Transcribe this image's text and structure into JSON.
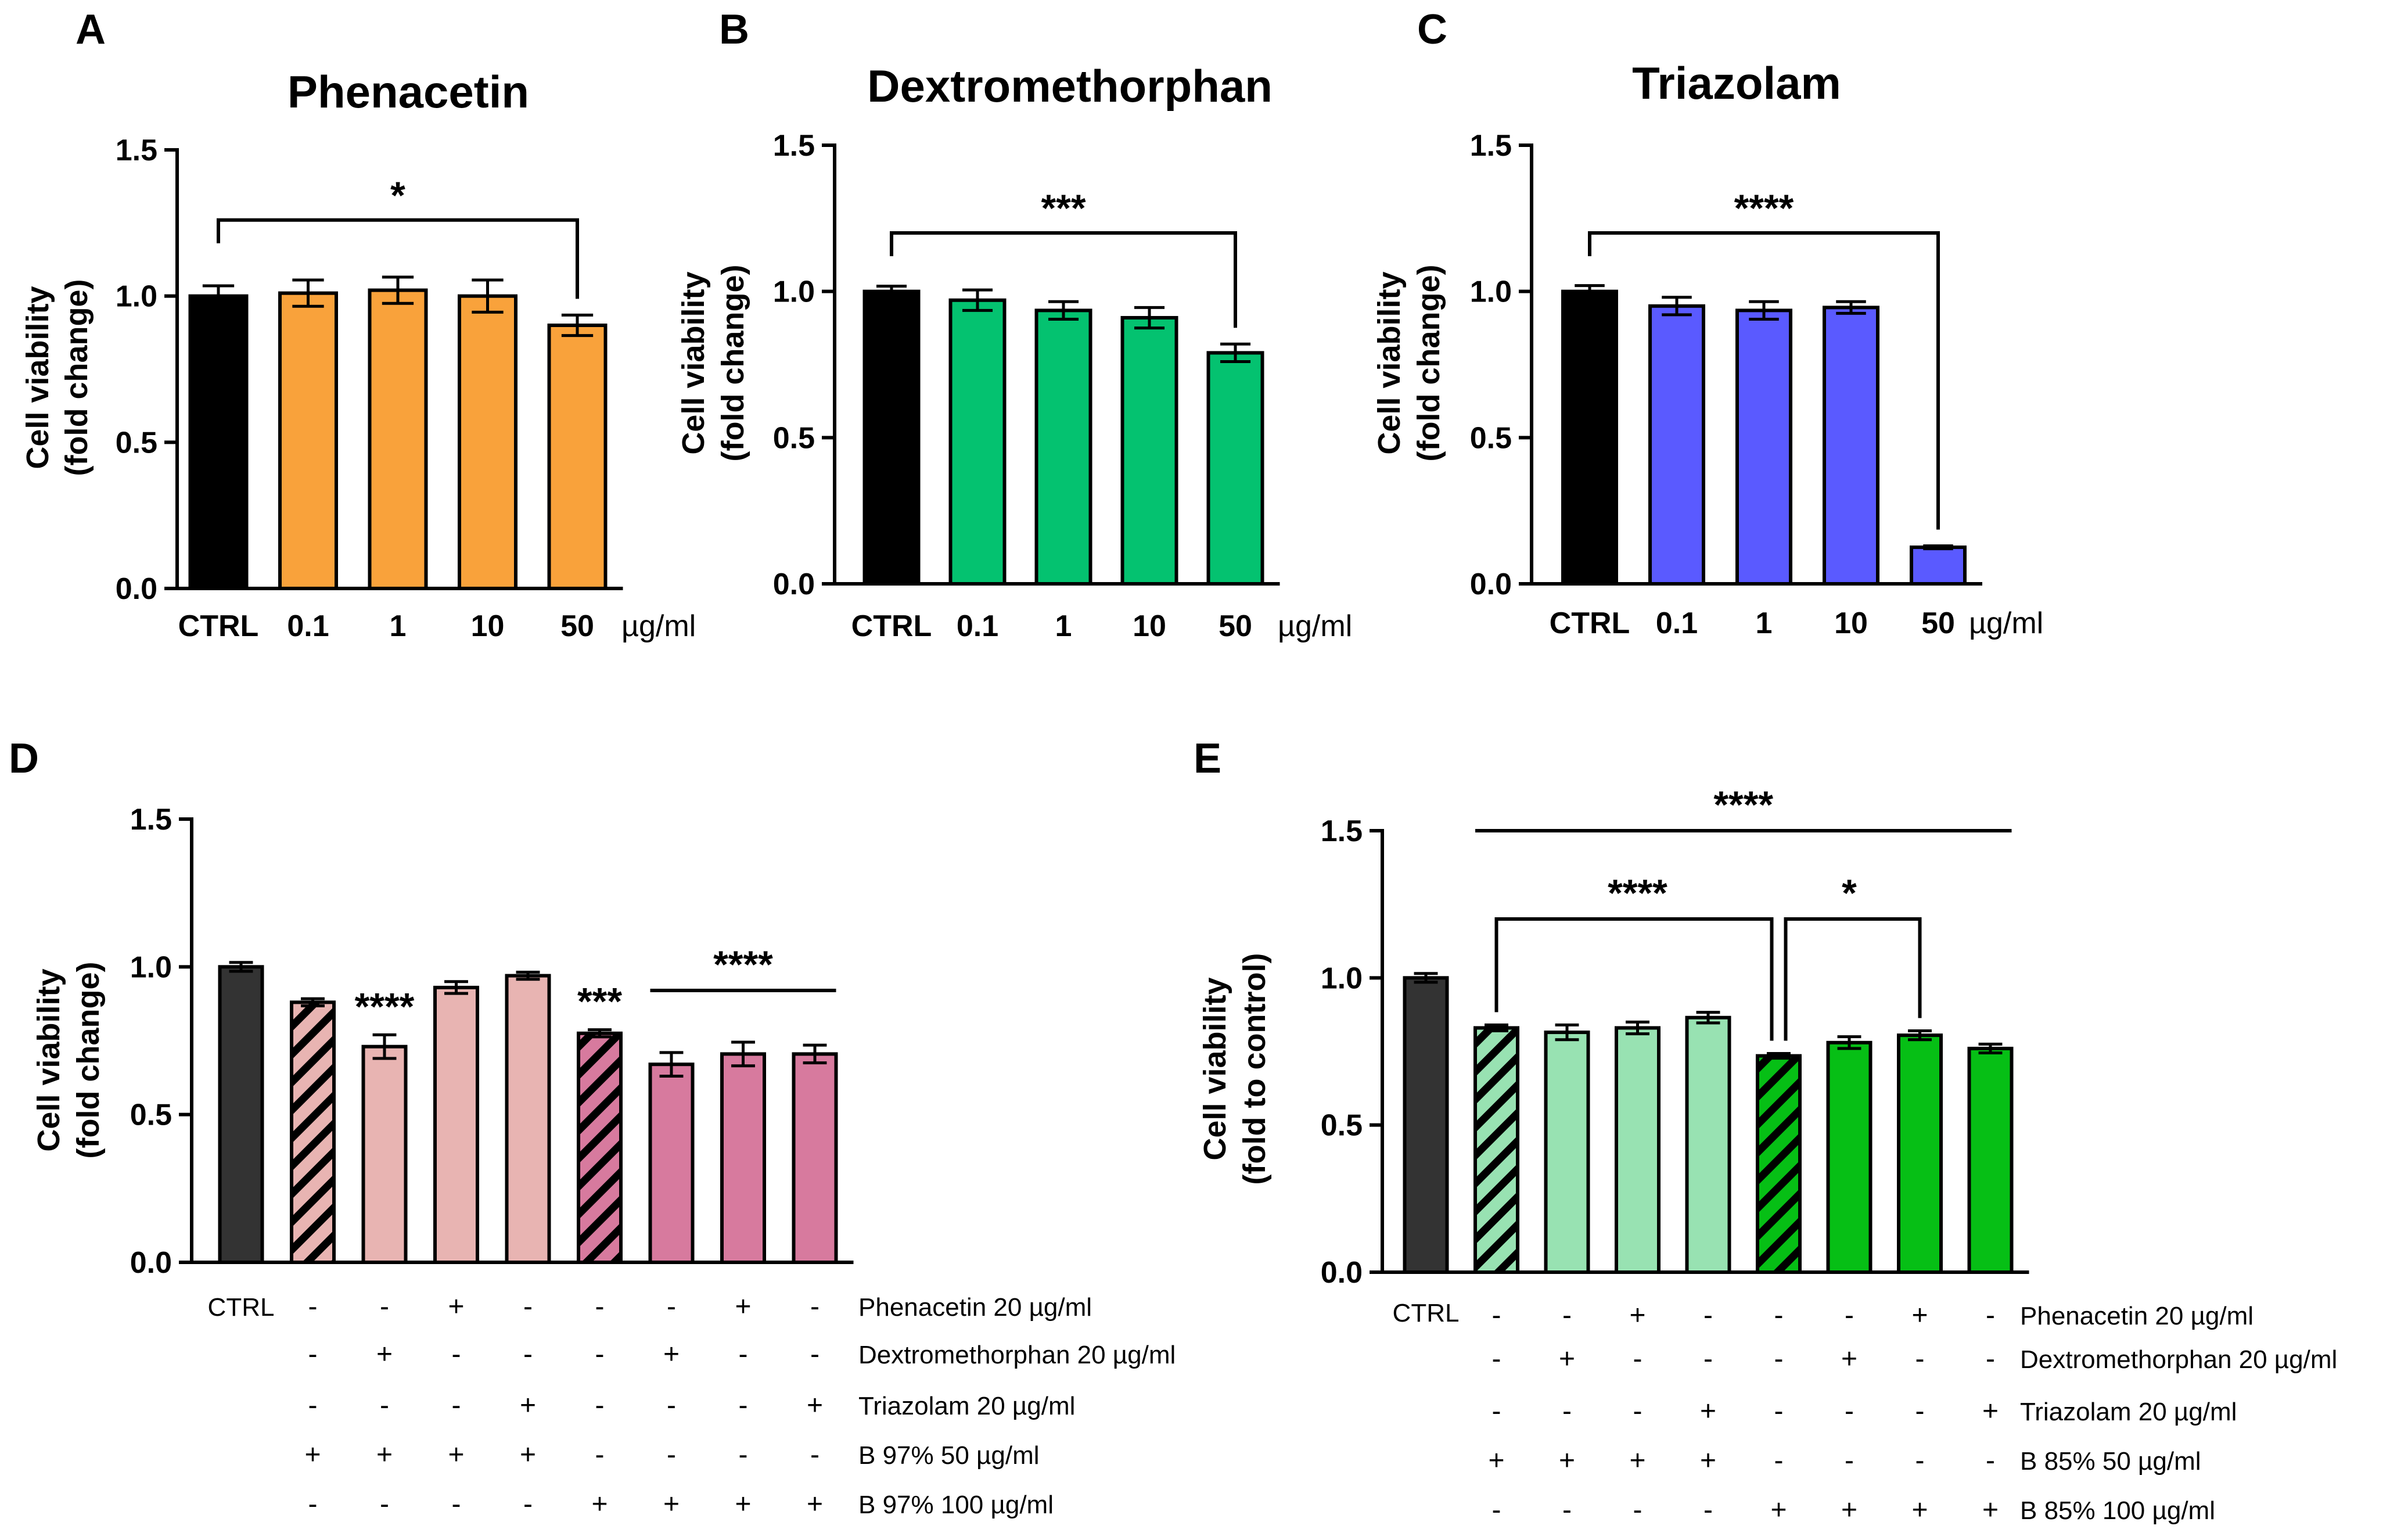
{
  "chart_data": [
    {
      "panel": "A",
      "type": "bar",
      "title": "Phenacetin",
      "ylabel": [
        "Cell viability",
        "(fold change)"
      ],
      "xunit": "µg/ml",
      "ylim": [
        0,
        1.5
      ],
      "yticks": [
        "0.0",
        "0.5",
        "1.0",
        "1.5"
      ],
      "categories": [
        "CTRL",
        "0.1",
        "1",
        "10",
        "50"
      ],
      "values": [
        1.0,
        1.01,
        1.02,
        1.0,
        0.9
      ],
      "errors": [
        0.035,
        0.045,
        0.045,
        0.055,
        0.035
      ],
      "colors": [
        "#000000",
        "#f9a23b",
        "#f9a23b",
        "#f9a23b",
        "#f9a23b"
      ],
      "significance": [
        {
          "from": 0,
          "to": 4,
          "label": "*",
          "level": 1.26
        }
      ]
    },
    {
      "panel": "B",
      "type": "bar",
      "title": "Dextromethorphan",
      "ylabel": [
        "Cell viability",
        "(fold change)"
      ],
      "xunit": "µg/ml",
      "ylim": [
        0,
        1.5
      ],
      "yticks": [
        "0.0",
        "0.5",
        "1.0",
        "1.5"
      ],
      "categories": [
        "CTRL",
        "0.1",
        "1",
        "10",
        "50"
      ],
      "values": [
        1.0,
        0.97,
        0.935,
        0.91,
        0.79
      ],
      "errors": [
        0.018,
        0.035,
        0.03,
        0.035,
        0.03
      ],
      "colors": [
        "#000000",
        "#04c270",
        "#04c270",
        "#04c270",
        "#04c270"
      ],
      "significance": [
        {
          "from": 0,
          "to": 4,
          "label": "***",
          "level": 1.2
        }
      ]
    },
    {
      "panel": "C",
      "type": "bar",
      "title": "Triazolam",
      "ylabel": [
        "Cell viability",
        "(fold change)"
      ],
      "xunit": "µg/ml",
      "ylim": [
        0,
        1.5
      ],
      "yticks": [
        "0.0",
        "0.5",
        "1.0",
        "1.5"
      ],
      "categories": [
        "CTRL",
        "0.1",
        "1",
        "10",
        "50"
      ],
      "values": [
        1.0,
        0.95,
        0.935,
        0.945,
        0.125
      ],
      "errors": [
        0.02,
        0.03,
        0.03,
        0.02,
        0.005
      ],
      "colors": [
        "#000000",
        "#5a5aff",
        "#5a5aff",
        "#5a5aff",
        "#5a5aff"
      ],
      "significance": [
        {
          "from": 0,
          "to": 4,
          "label": "****",
          "level": 1.2
        }
      ]
    },
    {
      "panel": "D",
      "type": "bar",
      "ylabel": [
        "Cell viability",
        "(fold change)"
      ],
      "ylim": [
        0,
        1.5
      ],
      "yticks": [
        "0.0",
        "0.5",
        "1.0",
        "1.5"
      ],
      "categories": [
        "CTRL",
        "",
        "",
        "",
        "",
        "",
        "",
        "",
        ""
      ],
      "values": [
        1.0,
        0.88,
        0.73,
        0.93,
        0.97,
        0.775,
        0.67,
        0.705,
        0.705
      ],
      "errors": [
        0.015,
        0.012,
        0.04,
        0.02,
        0.012,
        0.012,
        0.04,
        0.04,
        0.03
      ],
      "colors": [
        "#333333",
        "#e8b4b2",
        "#e8b4b2",
        "#e8b4b2",
        "#e8b4b2",
        "#d77a9e",
        "#d77a9e",
        "#d77a9e",
        "#d77a9e"
      ],
      "hatched": [
        false,
        true,
        false,
        false,
        false,
        true,
        false,
        false,
        false
      ],
      "hatch_colors": [
        "",
        "#e8b4b2",
        "",
        "",
        "",
        "#d77a9e",
        "",
        "",
        ""
      ],
      "star_labels": [
        {
          "index": 2,
          "label": "****"
        },
        {
          "index": 5,
          "label": "***"
        }
      ],
      "lines": [
        {
          "from": 6,
          "to": 8,
          "label": "****",
          "level": 0.92
        }
      ],
      "conditions": [
        {
          "label": "Phenacetin 20 µg/ml",
          "marks": [
            "-",
            "-",
            "+",
            "-",
            "-",
            "-",
            "+",
            "-"
          ]
        },
        {
          "label": "Dextromethorphan 20 µg/ml",
          "marks": [
            "-",
            "+",
            "-",
            "-",
            "-",
            "+",
            "-",
            "-"
          ]
        },
        {
          "label": "Triazolam 20 µg/ml",
          "marks": [
            "-",
            "-",
            "-",
            "+",
            "-",
            "-",
            "-",
            "+"
          ]
        },
        {
          "label": "B 97% 50 µg/ml",
          "marks": [
            "+",
            "+",
            "+",
            "+",
            "-",
            "-",
            "-",
            "-"
          ]
        },
        {
          "label": "B 97% 100 µg/ml",
          "marks": [
            "-",
            "-",
            "-",
            "-",
            "+",
            "+",
            "+",
            "+"
          ]
        }
      ]
    },
    {
      "panel": "E",
      "type": "bar",
      "ylabel": [
        "Cell viability",
        "(fold to control)"
      ],
      "ylim": [
        0,
        1.5
      ],
      "yticks": [
        "0.0",
        "0.5",
        "1.0",
        "1.5"
      ],
      "categories": [
        "CTRL",
        "",
        "",
        "",
        "",
        "",
        "",
        "",
        ""
      ],
      "values": [
        1.0,
        0.83,
        0.815,
        0.83,
        0.865,
        0.735,
        0.78,
        0.805,
        0.76
      ],
      "errors": [
        0.015,
        0.01,
        0.025,
        0.02,
        0.018,
        0.008,
        0.02,
        0.015,
        0.015
      ],
      "colors": [
        "#333333",
        "#98e2b2",
        "#98e2b2",
        "#98e2b2",
        "#98e2b2",
        "#06bf15",
        "#06bf15",
        "#06bf15",
        "#06bf15"
      ],
      "hatched": [
        false,
        true,
        false,
        false,
        false,
        true,
        false,
        false,
        false
      ],
      "hatch_colors": [
        "",
        "#98e2b2",
        "",
        "",
        "",
        "#06bf15",
        "",
        "",
        ""
      ],
      "brackets": [
        {
          "from": 1,
          "to": 5,
          "label": "****",
          "level": 1.2
        },
        {
          "from": 5,
          "to": 7,
          "label": "*",
          "level": 1.2
        }
      ],
      "lines": [
        {
          "from": 1,
          "to": 8,
          "label": "****",
          "level": 1.5
        }
      ],
      "conditions": [
        {
          "label": "Phenacetin 20 µg/ml",
          "marks": [
            "-",
            "-",
            "+",
            "-",
            "-",
            "-",
            "+",
            "-"
          ]
        },
        {
          "label": "Dextromethorphan 20 µg/ml",
          "marks": [
            "-",
            "+",
            "-",
            "-",
            "-",
            "+",
            "-",
            "-"
          ]
        },
        {
          "label": "Triazolam 20 µg/ml",
          "marks": [
            "-",
            "-",
            "-",
            "+",
            "-",
            "-",
            "-",
            "+"
          ]
        },
        {
          "label": "B 85% 50 µg/ml",
          "marks": [
            "+",
            "+",
            "+",
            "+",
            "-",
            "-",
            "-",
            "-"
          ]
        },
        {
          "label": "B 85% 100 µg/ml",
          "marks": [
            "-",
            "-",
            "-",
            "-",
            "+",
            "+",
            "+",
            "+"
          ]
        }
      ]
    }
  ]
}
